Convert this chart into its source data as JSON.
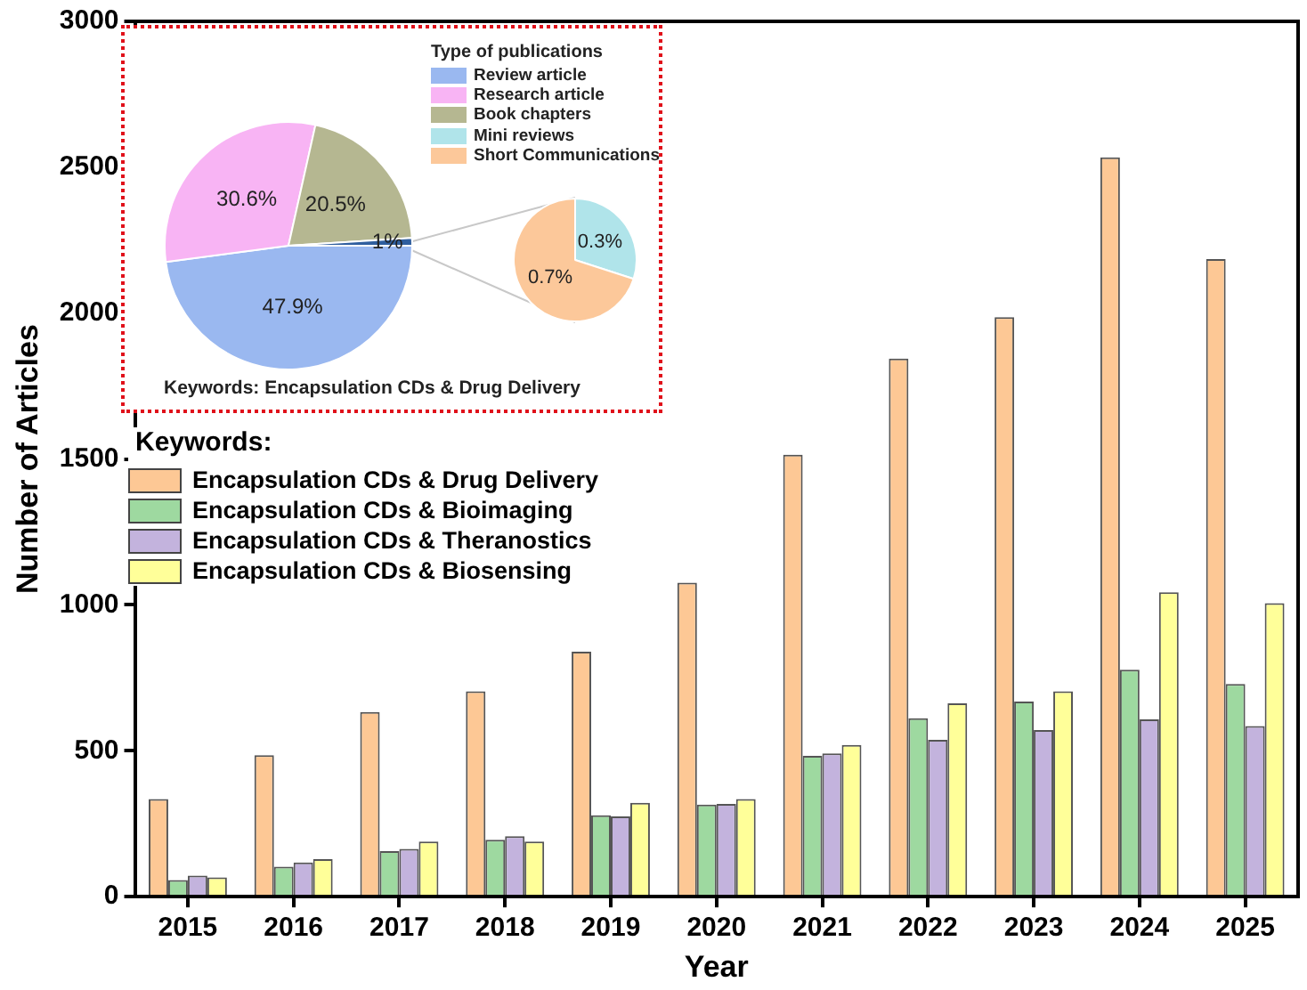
{
  "chart_data": [
    {
      "type": "bar",
      "xlabel": "Year",
      "ylabel": "Number of Articles",
      "categories": [
        "2015",
        "2016",
        "2017",
        "2018",
        "2019",
        "2020",
        "2021",
        "2022",
        "2023",
        "2024",
        "2025"
      ],
      "series": [
        {
          "name": "Encapsulation CDs & Drug Delivery",
          "color": "#fdc895",
          "values": [
            335,
            485,
            633,
            704,
            840,
            1076,
            1515,
            1844,
            1986,
            2534,
            2185
          ]
        },
        {
          "name": "Encapsulation CDs & Bioimaging",
          "color": "#9ed9a0",
          "values": [
            57,
            103,
            156,
            195,
            279,
            316,
            483,
            612,
            669,
            778,
            729
          ]
        },
        {
          "name": "Encapsulation CDs & Theranostics",
          "color": "#c3b3dd",
          "values": [
            72,
            117,
            164,
            207,
            275,
            318,
            491,
            538,
            571,
            608,
            585
          ]
        },
        {
          "name": "Encapsulation CDs & Biosensing",
          "color": "#ffff99",
          "values": [
            66,
            129,
            189,
            189,
            322,
            335,
            520,
            663,
            704,
            1043,
            1006
          ]
        }
      ],
      "ylim": [
        0,
        3000
      ],
      "yticks": [
        0,
        500,
        1000,
        1500,
        2000,
        2500,
        3000
      ],
      "grid": false,
      "legend": "left",
      "legend_title": "Keywords:"
    },
    {
      "type": "pie",
      "categories": [
        "Review article",
        "Research article",
        "Book chapters",
        null
      ],
      "values": [
        47.9,
        30.6,
        20.5,
        1
      ],
      "colors": [
        "#9ab8f0",
        "#f8b4f4",
        "#b5b791",
        "#2f5e9e"
      ],
      "value_labels": [
        "47.9%",
        "30.6%",
        "20.5%",
        "1%"
      ],
      "legend": "top right",
      "legend_title": "Type of publications",
      "annotations": [
        "Keywords: Encapsulation CDs & Drug Delivery"
      ]
    },
    {
      "type": "pie",
      "categories": [
        "Mini reviews",
        "Short Communications"
      ],
      "values": [
        0.3,
        0.7
      ],
      "colors": [
        "#b0e4ea",
        "#fcc89a"
      ],
      "value_labels": [
        "0.3%",
        "0.7%"
      ],
      "legend": "top left"
    }
  ]
}
